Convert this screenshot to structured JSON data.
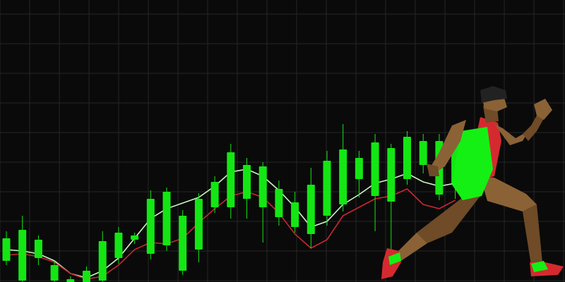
{
  "colors": {
    "background": "#0a0a0a",
    "grid": "#262626",
    "up": "#14e614",
    "down": "#c8282f",
    "ma_fast": "#c8f5c0",
    "ma_slow": "#c8282f",
    "runner_skin": "#8b6236",
    "runner_shirt": "#14f014",
    "runner_accent": "#d42a2f",
    "runner_hair": "#222222"
  },
  "chart_data": {
    "type": "candlestick",
    "title": "",
    "xlabel": "",
    "ylabel": "",
    "ylim": [
      0,
      400
    ],
    "grid": true,
    "legend": "none",
    "candles": [
      {
        "open": 62,
        "close": 30,
        "high": 72,
        "low": 24
      },
      {
        "open": 74,
        "close": 2,
        "high": 94,
        "low": 0
      },
      {
        "open": 60,
        "close": 34,
        "high": 66,
        "low": 24
      },
      {
        "open": 24,
        "close": 2,
        "high": 30,
        "low": 0
      },
      {
        "open": 4,
        "close": 0,
        "high": 8,
        "low": 0
      },
      {
        "open": 16,
        "close": 0,
        "high": 22,
        "low": 0
      },
      {
        "open": 58,
        "close": 2,
        "high": 72,
        "low": 0
      },
      {
        "open": 70,
        "close": 34,
        "high": 78,
        "low": 26
      },
      {
        "open": 66,
        "close": 60,
        "high": 70,
        "low": 54
      },
      {
        "open": 118,
        "close": 40,
        "high": 130,
        "low": 32
      },
      {
        "open": 128,
        "close": 52,
        "high": 134,
        "low": 44
      },
      {
        "open": 94,
        "close": 16,
        "high": 102,
        "low": 10
      },
      {
        "open": 118,
        "close": 46,
        "high": 126,
        "low": 28
      },
      {
        "open": 142,
        "close": 106,
        "high": 150,
        "low": 98
      },
      {
        "open": 184,
        "close": 106,
        "high": 196,
        "low": 90
      },
      {
        "open": 166,
        "close": 118,
        "high": 176,
        "low": 90
      },
      {
        "open": 164,
        "close": 106,
        "high": 170,
        "low": 56
      },
      {
        "open": 132,
        "close": 92,
        "high": 144,
        "low": 80
      },
      {
        "open": 113,
        "close": 78,
        "high": 128,
        "low": 70
      },
      {
        "open": 138,
        "close": 68,
        "high": 162,
        "low": 48
      },
      {
        "open": 172,
        "close": 94,
        "high": 186,
        "low": 80
      },
      {
        "open": 188,
        "close": 110,
        "high": 224,
        "low": 100
      },
      {
        "open": 176,
        "close": 146,
        "high": 186,
        "low": 120
      },
      {
        "open": 198,
        "close": 122,
        "high": 210,
        "low": 72
      },
      {
        "open": 190,
        "close": 114,
        "high": 196,
        "low": 28
      },
      {
        "open": 206,
        "close": 146,
        "high": 214,
        "low": 138
      },
      {
        "open": 200,
        "close": 166,
        "high": 210,
        "low": 154
      },
      {
        "open": 200,
        "close": 124,
        "high": 210,
        "low": 116
      },
      {
        "open": 196,
        "close": 140,
        "high": 206,
        "low": 118
      }
    ],
    "series": [
      {
        "values": [
          46,
          44,
          40,
          30,
          12,
          6,
          16,
          34,
          62,
          90,
          104,
          112,
          120,
          136,
          156,
          160,
          150,
          130,
          106,
          78,
          86,
          110,
          124,
          140,
          146,
          154,
          142,
          136,
          140
        ]
      },
      {
        "values": [
          38,
          40,
          36,
          28,
          12,
          4,
          8,
          24,
          46,
          56,
          54,
          62,
          84,
          104,
          122,
          128,
          120,
          98,
          68,
          48,
          60,
          94,
          106,
          118,
          122,
          132,
          110,
          104,
          116
        ]
      }
    ]
  }
}
